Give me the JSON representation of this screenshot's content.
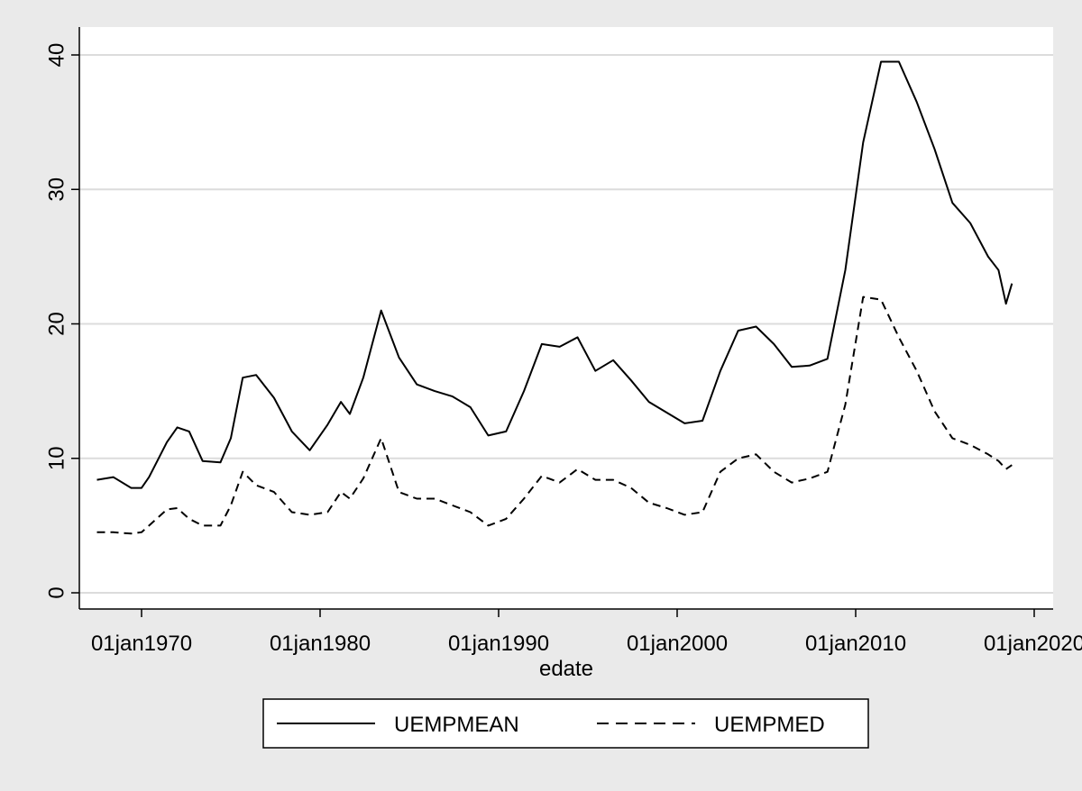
{
  "chart_data": {
    "type": "line",
    "title": "",
    "xlabel": "edate",
    "ylabel": "",
    "xlim": [
      "1967-01-01",
      "2020-01-01"
    ],
    "ylim": [
      -2,
      42
    ],
    "grid": true,
    "legend_position": "bottom",
    "x_ticks": [
      {
        "date": "1970-01-01",
        "label": "01jan1970"
      },
      {
        "date": "1980-01-01",
        "label": "01jan1980"
      },
      {
        "date": "1990-01-01",
        "label": "01jan1990"
      },
      {
        "date": "2000-01-01",
        "label": "01jan2000"
      },
      {
        "date": "2010-01-01",
        "label": "01jan2010"
      },
      {
        "date": "2020-01-01",
        "label": "01jan2020"
      }
    ],
    "y_ticks": [
      0,
      10,
      20,
      30,
      40
    ],
    "series": [
      {
        "name": "UEMPMEAN",
        "style": "solid",
        "color": "#000000",
        "points": [
          [
            "1967-07-01",
            8.4
          ],
          [
            "1968-06-01",
            8.6
          ],
          [
            "1969-06-01",
            7.8
          ],
          [
            "1970-01-01",
            7.8
          ],
          [
            "1970-06-01",
            8.6
          ],
          [
            "1971-06-01",
            11.2
          ],
          [
            "1972-01-01",
            12.3
          ],
          [
            "1972-09-01",
            12.0
          ],
          [
            "1973-06-01",
            9.8
          ],
          [
            "1974-06-01",
            9.7
          ],
          [
            "1975-01-01",
            11.5
          ],
          [
            "1975-09-01",
            16.0
          ],
          [
            "1976-06-01",
            16.2
          ],
          [
            "1977-06-01",
            14.5
          ],
          [
            "1978-06-01",
            12.0
          ],
          [
            "1979-06-01",
            10.6
          ],
          [
            "1980-06-01",
            12.5
          ],
          [
            "1981-03-01",
            14.2
          ],
          [
            "1981-09-01",
            13.3
          ],
          [
            "1982-06-01",
            16.0
          ],
          [
            "1983-06-01",
            21.0
          ],
          [
            "1984-06-01",
            17.5
          ],
          [
            "1985-06-01",
            15.5
          ],
          [
            "1986-06-01",
            15.0
          ],
          [
            "1987-06-01",
            14.6
          ],
          [
            "1988-06-01",
            13.8
          ],
          [
            "1989-06-01",
            11.7
          ],
          [
            "1990-06-01",
            12.0
          ],
          [
            "1991-06-01",
            15.0
          ],
          [
            "1992-06-01",
            18.5
          ],
          [
            "1993-06-01",
            18.3
          ],
          [
            "1994-06-01",
            19.0
          ],
          [
            "1995-06-01",
            16.5
          ],
          [
            "1996-06-01",
            17.3
          ],
          [
            "1997-06-01",
            15.8
          ],
          [
            "1998-06-01",
            14.2
          ],
          [
            "1999-06-01",
            13.4
          ],
          [
            "2000-06-01",
            12.6
          ],
          [
            "2001-06-01",
            12.8
          ],
          [
            "2002-06-01",
            16.5
          ],
          [
            "2003-06-01",
            19.5
          ],
          [
            "2004-06-01",
            19.8
          ],
          [
            "2005-06-01",
            18.5
          ],
          [
            "2006-06-01",
            16.8
          ],
          [
            "2007-06-01",
            16.9
          ],
          [
            "2008-06-01",
            17.4
          ],
          [
            "2009-06-01",
            24.0
          ],
          [
            "2010-06-01",
            33.5
          ],
          [
            "2011-06-01",
            39.5
          ],
          [
            "2012-06-01",
            39.5
          ],
          [
            "2013-06-01",
            36.5
          ],
          [
            "2014-06-01",
            33.0
          ],
          [
            "2015-06-01",
            29.0
          ],
          [
            "2016-06-01",
            27.5
          ],
          [
            "2017-06-01",
            25.0
          ],
          [
            "2018-01-01",
            24.0
          ],
          [
            "2018-06-01",
            21.5
          ],
          [
            "2018-10-01",
            23.0
          ]
        ]
      },
      {
        "name": "UEMPMED",
        "style": "dashed",
        "color": "#000000",
        "points": [
          [
            "1967-07-01",
            4.5
          ],
          [
            "1968-06-01",
            4.5
          ],
          [
            "1969-06-01",
            4.4
          ],
          [
            "1970-01-01",
            4.5
          ],
          [
            "1970-06-01",
            5.0
          ],
          [
            "1971-06-01",
            6.2
          ],
          [
            "1972-01-01",
            6.3
          ],
          [
            "1972-09-01",
            5.5
          ],
          [
            "1973-06-01",
            5.0
          ],
          [
            "1974-06-01",
            5.0
          ],
          [
            "1975-01-01",
            6.5
          ],
          [
            "1975-09-01",
            9.0
          ],
          [
            "1976-06-01",
            8.0
          ],
          [
            "1977-06-01",
            7.5
          ],
          [
            "1978-06-01",
            6.0
          ],
          [
            "1979-06-01",
            5.8
          ],
          [
            "1980-06-01",
            6.0
          ],
          [
            "1981-03-01",
            7.5
          ],
          [
            "1981-09-01",
            7.0
          ],
          [
            "1982-06-01",
            8.5
          ],
          [
            "1983-06-01",
            11.5
          ],
          [
            "1984-06-01",
            7.5
          ],
          [
            "1985-06-01",
            7.0
          ],
          [
            "1986-06-01",
            7.0
          ],
          [
            "1987-06-01",
            6.5
          ],
          [
            "1988-06-01",
            6.0
          ],
          [
            "1989-06-01",
            5.0
          ],
          [
            "1990-06-01",
            5.5
          ],
          [
            "1991-06-01",
            7.0
          ],
          [
            "1992-06-01",
            8.7
          ],
          [
            "1993-06-01",
            8.2
          ],
          [
            "1994-06-01",
            9.2
          ],
          [
            "1995-06-01",
            8.4
          ],
          [
            "1996-06-01",
            8.4
          ],
          [
            "1997-06-01",
            7.8
          ],
          [
            "1998-06-01",
            6.7
          ],
          [
            "1999-06-01",
            6.3
          ],
          [
            "2000-06-01",
            5.8
          ],
          [
            "2001-06-01",
            6.0
          ],
          [
            "2002-06-01",
            9.0
          ],
          [
            "2003-06-01",
            10.0
          ],
          [
            "2004-06-01",
            10.3
          ],
          [
            "2005-06-01",
            9.0
          ],
          [
            "2006-06-01",
            8.2
          ],
          [
            "2007-06-01",
            8.5
          ],
          [
            "2008-06-01",
            9.0
          ],
          [
            "2009-06-01",
            14.0
          ],
          [
            "2010-06-01",
            22.0
          ],
          [
            "2011-06-01",
            21.8
          ],
          [
            "2012-06-01",
            19.0
          ],
          [
            "2013-06-01",
            16.5
          ],
          [
            "2014-06-01",
            13.5
          ],
          [
            "2015-06-01",
            11.5
          ],
          [
            "2016-06-01",
            11.0
          ],
          [
            "2017-06-01",
            10.3
          ],
          [
            "2018-01-01",
            9.8
          ],
          [
            "2018-06-01",
            9.2
          ],
          [
            "2018-10-01",
            9.5
          ]
        ]
      }
    ]
  }
}
